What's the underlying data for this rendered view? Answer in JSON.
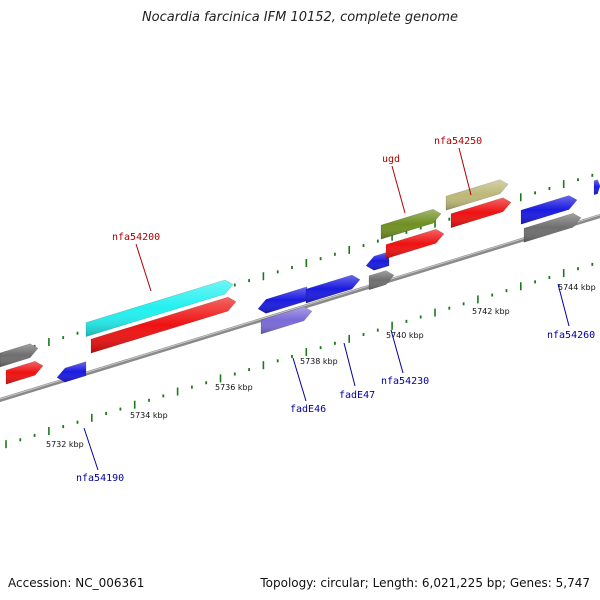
{
  "title": "Nocardia farcinica IFM 10152, complete genome",
  "footer": {
    "accession": "Accession: NC_006361",
    "summary": "Topology: circular; Length: 6,021,225 bp; Genes: 5,747"
  },
  "colors": {
    "backbone": "#8a8a8a",
    "tick": "#1a7a1a",
    "red": "#ee1111",
    "blue": "#1a1ae0",
    "gray": "#6e6e6e",
    "cyan": "#22f0f0",
    "olive": "#6f8f22",
    "khaki": "#bdb878",
    "lavender": "#7a6ad8",
    "label_red": "#b00000",
    "label_blue": "#0000a0"
  },
  "kbp_labels": [
    "5732 kbp",
    "5734 kbp",
    "5736 kbp",
    "5738 kbp",
    "5740 kbp",
    "5742 kbp",
    "5744 kbp"
  ],
  "gene_labels": {
    "top": [
      "nfa54200",
      "ugd",
      "nfa54250"
    ],
    "bottom": [
      "nfa54190",
      "fadE46",
      "fadE47",
      "nfa54230",
      "nfa54260"
    ]
  }
}
